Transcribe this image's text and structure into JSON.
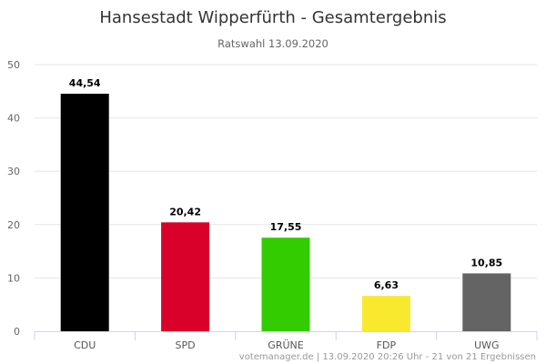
{
  "chart_data": {
    "type": "bar",
    "title": "Hansestadt Wipperfürth - Gesamtergebnis",
    "subtitle": "Ratswahl 13.09.2020",
    "categories": [
      "CDU",
      "SPD",
      "GRÜNE",
      "FDP",
      "UWG"
    ],
    "values": [
      44.54,
      20.42,
      17.55,
      6.63,
      10.85
    ],
    "data_labels": [
      "44,54",
      "20,42",
      "17,55",
      "6,63",
      "10,85"
    ],
    "colors": [
      "#000000",
      "#d9002a",
      "#33cc00",
      "#f8e92e",
      "#646464"
    ],
    "ylim": [
      0,
      50
    ],
    "yticks": [
      0,
      10,
      20,
      30,
      40,
      50
    ],
    "xlabel": "",
    "ylabel": "",
    "grid": true,
    "legend": "none",
    "credit": "votemanager.de | 13.09.2020 20:26 Uhr - 21 von 21 Ergebnissen"
  }
}
